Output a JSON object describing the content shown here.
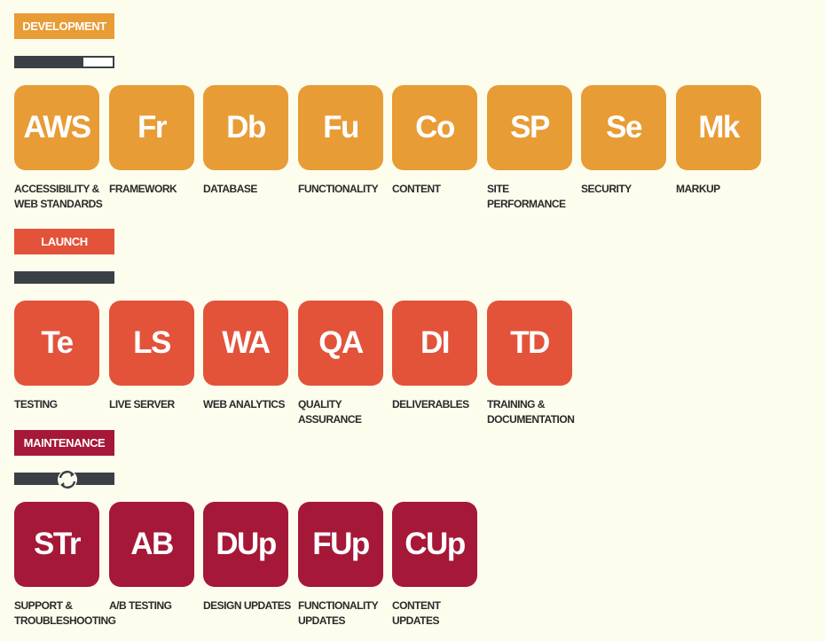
{
  "colors": {
    "background": "#fdfdee",
    "progress_track": "#3a4046"
  },
  "sections": [
    {
      "label": "DEVELOPMENT",
      "color": "#e89c35",
      "progress": 0.7,
      "progress_icon": "",
      "items": [
        {
          "abbr": "AWS",
          "caption": "ACCESSIBILITY &\nWEB STANDARDS"
        },
        {
          "abbr": "Fr",
          "caption": "FRAMEWORK"
        },
        {
          "abbr": "Db",
          "caption": "DATABASE"
        },
        {
          "abbr": "Fu",
          "caption": "FUNCTIONALITY"
        },
        {
          "abbr": "Co",
          "caption": "CONTENT"
        },
        {
          "abbr": "SP",
          "caption": "SITE\nPERFORMANCE"
        },
        {
          "abbr": "Se",
          "caption": "SECURITY"
        },
        {
          "abbr": "Mk",
          "caption": "MARKUP"
        }
      ]
    },
    {
      "label": "LAUNCH",
      "color": "#e2533a",
      "progress": 1.0,
      "progress_icon": "",
      "items": [
        {
          "abbr": "Te",
          "caption": "TESTING"
        },
        {
          "abbr": "LS",
          "caption": "LIVE SERVER"
        },
        {
          "abbr": "WA",
          "caption": "WEB ANALYTICS"
        },
        {
          "abbr": "QA",
          "caption": "QUALITY\nASSURANCE"
        },
        {
          "abbr": "DI",
          "caption": "DELIVERABLES"
        },
        {
          "abbr": "TD",
          "caption": "TRAINING &\nDOCUMENTATION"
        }
      ]
    },
    {
      "label": "MAINTENANCE",
      "color": "#a51838",
      "progress": 1.0,
      "progress_icon": "cycle-icon",
      "items": [
        {
          "abbr": "STr",
          "caption": "SUPPORT &\nTROUBLESHOOTING"
        },
        {
          "abbr": "AB",
          "caption": "A/B TESTING"
        },
        {
          "abbr": "DUp",
          "caption": "DESIGN UPDATES"
        },
        {
          "abbr": "FUp",
          "caption": "FUNCTIONALITY\nUPDATES"
        },
        {
          "abbr": "CUp",
          "caption": "CONTENT\nUPDATES"
        }
      ]
    }
  ]
}
